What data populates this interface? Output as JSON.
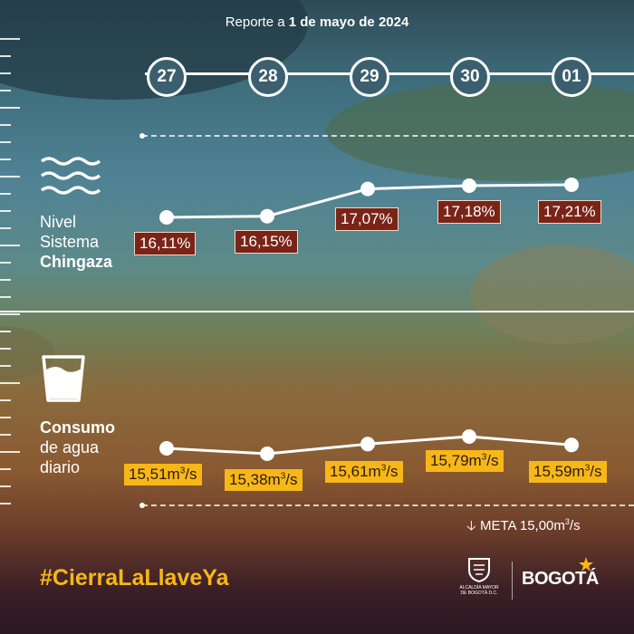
{
  "header": {
    "prefix": "Reporte a",
    "bold": "1 de mayo de 2024"
  },
  "dates": [
    "27",
    "28",
    "29",
    "30",
    "01"
  ],
  "sections": {
    "nivel": {
      "line1": "Nivel",
      "line2": "Sistema",
      "bold": "Chingaza"
    },
    "consumo": {
      "bold": "Consumo",
      "line2": "de agua",
      "line3": "diario"
    }
  },
  "nivel_labels": [
    "16,11%",
    "16,15%",
    "17,07%",
    "17,18%",
    "17,21%"
  ],
  "consumo_labels": [
    "15,51",
    "15,38",
    "15,61",
    "15,79",
    "15,59"
  ],
  "consumo_unit": "m",
  "consumo_unit_sup": "3",
  "consumo_unit_suffix": "/s",
  "meta": {
    "arrow": "🡣",
    "text": "META 15,00m",
    "sup": "3",
    "suffix": "/s"
  },
  "hashtag": "#CierraLaLlaveYa",
  "logos": {
    "alcaldia": "ALCALDÍA MAYOR DE BOGOTÁ D.C.",
    "bogota": "BOGOTÁ"
  },
  "chart_data": [
    {
      "type": "line",
      "x": [
        "27",
        "28",
        "29",
        "30",
        "01"
      ],
      "series": [
        {
          "name": "Nivel Sistema Chingaza",
          "values": [
            16.11,
            16.15,
            17.07,
            17.18,
            17.21
          ]
        }
      ]
    },
    {
      "type": "line",
      "x": [
        "27",
        "28",
        "29",
        "30",
        "01"
      ],
      "series": [
        {
          "name": "Consumo de agua diario",
          "values": [
            15.51,
            15.38,
            15.61,
            15.79,
            15.59
          ]
        }
      ]
    }
  ],
  "colors": {
    "level_label_bg": "#7a2418",
    "consumo_label_bg": "#f7b718",
    "hashtag": "#f7b718"
  }
}
